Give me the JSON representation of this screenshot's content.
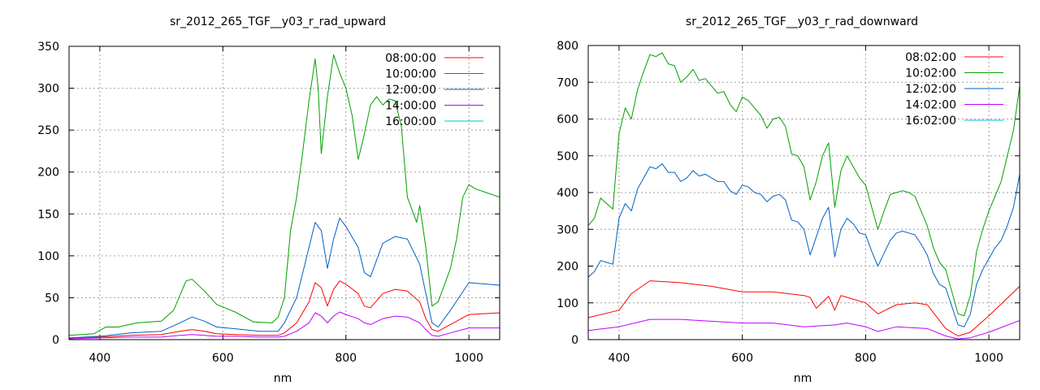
{
  "chart_data": [
    {
      "type": "line",
      "title": "sr_2012_265_TGF__y03_r_rad_upward",
      "xlabel": "nm",
      "ylabel": "",
      "xlim": [
        350,
        1050
      ],
      "ylim": [
        0,
        350
      ],
      "xticks": [
        400,
        600,
        800,
        1000
      ],
      "yticks": [
        0,
        50,
        100,
        150,
        200,
        250,
        300,
        350
      ],
      "grid": true,
      "legend": "top-right",
      "series": [
        {
          "name": "08:00:00",
          "color": "#ff0000",
          "x": [
            350,
            400,
            450,
            500,
            530,
            550,
            570,
            590,
            620,
            660,
            690,
            700,
            720,
            740,
            750,
            760,
            770,
            780,
            790,
            800,
            820,
            830,
            840,
            860,
            880,
            900,
            920,
            930,
            940,
            950,
            970,
            1000,
            1050
          ],
          "y": [
            2,
            3,
            5,
            6,
            10,
            12,
            10,
            7,
            6,
            5,
            5,
            8,
            20,
            45,
            68,
            62,
            40,
            60,
            70,
            66,
            55,
            40,
            38,
            55,
            60,
            58,
            45,
            25,
            12,
            10,
            18,
            30,
            32
          ]
        },
        {
          "name": "10:00:00",
          "color": "#00a000",
          "x": [
            350,
            390,
            410,
            430,
            460,
            500,
            520,
            540,
            550,
            570,
            590,
            620,
            650,
            680,
            690,
            700,
            710,
            720,
            730,
            740,
            750,
            755,
            760,
            770,
            780,
            790,
            800,
            810,
            820,
            830,
            840,
            850,
            860,
            870,
            880,
            890,
            900,
            910,
            915,
            920,
            930,
            940,
            950,
            970,
            980,
            990,
            1000,
            1010,
            1030,
            1050
          ],
          "y": [
            5,
            7,
            15,
            15,
            20,
            22,
            35,
            70,
            72,
            58,
            42,
            33,
            21,
            20,
            27,
            50,
            130,
            170,
            225,
            285,
            335,
            300,
            222,
            290,
            340,
            318,
            300,
            268,
            215,
            245,
            280,
            290,
            280,
            287,
            285,
            255,
            170,
            150,
            140,
            160,
            110,
            40,
            45,
            85,
            120,
            170,
            185,
            180,
            175,
            170
          ]
        },
        {
          "name": "12:00:00",
          "color": "#0060c0",
          "x": [
            350,
            400,
            450,
            500,
            530,
            550,
            570,
            590,
            620,
            660,
            690,
            700,
            720,
            740,
            750,
            760,
            770,
            780,
            790,
            800,
            820,
            830,
            840,
            860,
            880,
            900,
            920,
            930,
            940,
            950,
            970,
            1000,
            1050
          ],
          "y": [
            2,
            4,
            8,
            10,
            20,
            27,
            22,
            15,
            13,
            10,
            10,
            20,
            50,
            110,
            140,
            130,
            85,
            120,
            145,
            135,
            110,
            80,
            75,
            115,
            123,
            120,
            90,
            55,
            20,
            15,
            35,
            68,
            65
          ]
        },
        {
          "name": "14:00:00",
          "color": "#c000ff",
          "x": [
            350,
            400,
            450,
            500,
            530,
            550,
            570,
            590,
            620,
            660,
            690,
            700,
            720,
            740,
            750,
            760,
            770,
            780,
            790,
            800,
            820,
            830,
            840,
            860,
            880,
            900,
            920,
            930,
            940,
            950,
            970,
            1000,
            1050
          ],
          "y": [
            1,
            2,
            3,
            3,
            5,
            6,
            5,
            4,
            4,
            3,
            3,
            4,
            10,
            20,
            32,
            28,
            20,
            28,
            33,
            30,
            25,
            20,
            18,
            25,
            28,
            27,
            20,
            12,
            5,
            4,
            8,
            14,
            14
          ]
        },
        {
          "name": "16:00:00",
          "color": "#00c0e0",
          "x": [
            350,
            1050
          ],
          "y": [
            0,
            0
          ]
        }
      ]
    },
    {
      "type": "line",
      "title": "sr_2012_265_TGF__y03_r_rad_downward",
      "xlabel": "nm",
      "ylabel": "",
      "xlim": [
        350,
        1050
      ],
      "ylim": [
        0,
        800
      ],
      "xticks": [
        400,
        600,
        800,
        1000
      ],
      "yticks": [
        0,
        100,
        200,
        300,
        400,
        500,
        600,
        700,
        800
      ],
      "grid": true,
      "legend": "top-right",
      "series": [
        {
          "name": "08:02:00",
          "color": "#ff0000",
          "x": [
            350,
            400,
            420,
            450,
            500,
            550,
            600,
            650,
            700,
            710,
            720,
            740,
            750,
            760,
            770,
            800,
            820,
            850,
            880,
            900,
            930,
            950,
            970,
            1000,
            1050
          ],
          "y": [
            60,
            80,
            125,
            160,
            155,
            145,
            130,
            130,
            120,
            115,
            85,
            118,
            80,
            120,
            115,
            100,
            70,
            95,
            100,
            95,
            30,
            10,
            20,
            65,
            145
          ]
        },
        {
          "name": "10:02:00",
          "color": "#00a000",
          "x": [
            350,
            360,
            370,
            380,
            390,
            400,
            410,
            420,
            430,
            440,
            450,
            460,
            470,
            480,
            490,
            500,
            510,
            520,
            530,
            540,
            550,
            560,
            570,
            580,
            590,
            600,
            610,
            620,
            630,
            640,
            650,
            660,
            670,
            680,
            690,
            700,
            710,
            720,
            730,
            740,
            750,
            760,
            770,
            780,
            790,
            800,
            810,
            820,
            830,
            840,
            850,
            860,
            870,
            880,
            890,
            900,
            910,
            920,
            930,
            940,
            950,
            960,
            970,
            980,
            990,
            1000,
            1010,
            1020,
            1030,
            1040,
            1050
          ],
          "y": [
            310,
            330,
            385,
            370,
            355,
            560,
            630,
            600,
            680,
            730,
            775,
            770,
            780,
            750,
            745,
            700,
            715,
            735,
            705,
            710,
            690,
            670,
            675,
            640,
            620,
            660,
            650,
            630,
            610,
            575,
            600,
            605,
            580,
            505,
            500,
            470,
            380,
            430,
            500,
            535,
            360,
            460,
            500,
            470,
            440,
            420,
            360,
            300,
            350,
            395,
            400,
            405,
            400,
            390,
            350,
            310,
            250,
            210,
            190,
            130,
            70,
            65,
            120,
            240,
            300,
            350,
            390,
            430,
            500,
            570,
            690
          ]
        },
        {
          "name": "12:02:00",
          "color": "#0060c0",
          "x": [
            350,
            360,
            370,
            380,
            390,
            400,
            410,
            420,
            430,
            440,
            450,
            460,
            470,
            480,
            490,
            500,
            510,
            520,
            530,
            540,
            550,
            560,
            570,
            580,
            590,
            600,
            610,
            620,
            630,
            640,
            650,
            660,
            670,
            680,
            690,
            700,
            710,
            720,
            730,
            740,
            750,
            760,
            770,
            780,
            790,
            800,
            810,
            820,
            830,
            840,
            850,
            860,
            870,
            880,
            890,
            900,
            910,
            920,
            930,
            940,
            950,
            960,
            970,
            980,
            990,
            1000,
            1010,
            1020,
            1030,
            1040,
            1050
          ],
          "y": [
            170,
            185,
            215,
            210,
            205,
            330,
            370,
            350,
            410,
            440,
            470,
            465,
            478,
            455,
            455,
            430,
            440,
            460,
            445,
            450,
            440,
            430,
            430,
            405,
            395,
            420,
            415,
            400,
            395,
            375,
            390,
            395,
            380,
            325,
            320,
            300,
            230,
            280,
            330,
            360,
            225,
            300,
            330,
            315,
            290,
            285,
            240,
            200,
            235,
            270,
            290,
            295,
            290,
            285,
            260,
            230,
            180,
            150,
            140,
            90,
            40,
            35,
            70,
            150,
            190,
            220,
            250,
            270,
            310,
            360,
            450
          ]
        },
        {
          "name": "14:02:00",
          "color": "#c000ff",
          "x": [
            350,
            400,
            450,
            500,
            550,
            600,
            650,
            700,
            750,
            770,
            800,
            820,
            850,
            900,
            930,
            950,
            970,
            1000,
            1050
          ],
          "y": [
            25,
            35,
            55,
            55,
            50,
            45,
            45,
            35,
            40,
            45,
            35,
            22,
            35,
            30,
            10,
            2,
            5,
            20,
            52
          ]
        },
        {
          "name": "16:02:00",
          "color": "#00c0e0",
          "x": [
            350,
            1050
          ],
          "y": [
            0,
            0
          ]
        }
      ]
    }
  ]
}
